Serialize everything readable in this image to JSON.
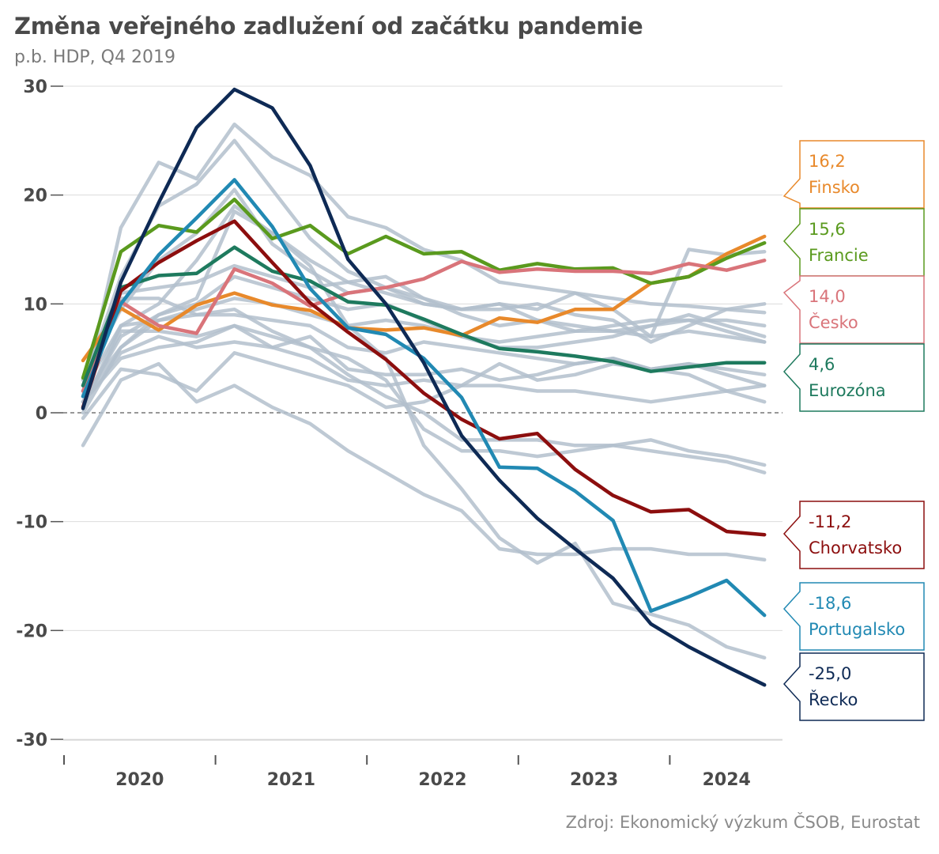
{
  "title": "Změna veřejného zadlužení od začátku pandemie",
  "subtitle": "p.b. HDP, Q4 2019",
  "source": "Zdroj: Ekonomický výzkum ČSOB, Eurostat",
  "chart_data": {
    "type": "line",
    "ylim": [
      -30,
      30
    ],
    "yticks": [
      30,
      20,
      10,
      0,
      -10,
      -20,
      -30
    ],
    "ytick_labels": [
      "30",
      "20",
      "10",
      "0",
      "-10",
      "-20",
      "-30"
    ],
    "xlim": [
      0,
      20
    ],
    "x": [
      0,
      1,
      2,
      3,
      4,
      5,
      6,
      7,
      8,
      9,
      10,
      11,
      12,
      13,
      14,
      15,
      16,
      17,
      18,
      19
    ],
    "x_periods": [
      "Q4 2019",
      "Q1 2020",
      "Q2 2020",
      "Q3 2020",
      "Q4 2020",
      "Q1 2021",
      "Q2 2021",
      "Q3 2021",
      "Q4 2021",
      "Q1 2022",
      "Q2 2022",
      "Q3 2022",
      "Q4 2022",
      "Q1 2023",
      "Q2 2023",
      "Q3 2023",
      "Q4 2023",
      "Q1 2024",
      "Q2 2024",
      "Q3 2024"
    ],
    "year_labels": [
      {
        "label": "2020",
        "center": 2
      },
      {
        "label": "2021",
        "center": 6
      },
      {
        "label": "2022",
        "center": 10
      },
      {
        "label": "2023",
        "center": 14
      },
      {
        "label": "2024",
        "center": 17.5
      }
    ],
    "year_boundaries": [
      0,
      4,
      8,
      12,
      16
    ],
    "zero_line": true,
    "grid": true,
    "highlighted": [
      {
        "name": "Finsko",
        "value_label": "16,2",
        "color": "#e8892b",
        "values": [
          4.8,
          9.6,
          7.6,
          9.9,
          11.0,
          9.9,
          9.4,
          7.8,
          7.6,
          7.8,
          7.1,
          8.7,
          8.3,
          9.5,
          9.5,
          11.9,
          12.5,
          14.6,
          16.2,
          null
        ]
      },
      {
        "name": "Francie",
        "value_label": "15,6",
        "color": "#5a9a1e",
        "values": [
          3.2,
          14.8,
          17.2,
          16.6,
          19.6,
          16.0,
          17.2,
          14.6,
          16.2,
          14.6,
          14.8,
          13.1,
          13.7,
          13.2,
          13.3,
          11.9,
          12.5,
          14.2,
          15.6,
          null
        ]
      },
      {
        "name": "Česko",
        "value_label": "14,0",
        "color": "#d9747a",
        "values": [
          2.0,
          10.2,
          8.0,
          7.3,
          13.2,
          11.9,
          9.8,
          11.0,
          11.5,
          12.3,
          13.9,
          12.9,
          13.2,
          13.0,
          13.0,
          12.8,
          13.7,
          13.1,
          14.0,
          null
        ]
      },
      {
        "name": "Eurozóna",
        "value_label": "4,6",
        "color": "#1e7a5e",
        "values": [
          2.5,
          11.5,
          12.6,
          12.8,
          15.2,
          13.0,
          12.1,
          10.2,
          9.9,
          8.6,
          7.2,
          5.9,
          5.6,
          5.2,
          4.7,
          3.8,
          4.2,
          4.6,
          4.6,
          null
        ]
      },
      {
        "name": "Chorvatsko",
        "value_label": "-11,2",
        "color": "#8c0e0e",
        "values": [
          0.5,
          11.2,
          13.8,
          15.8,
          17.6,
          13.8,
          10.1,
          7.4,
          4.9,
          1.8,
          -0.6,
          -2.4,
          -1.9,
          -5.2,
          -7.6,
          -9.1,
          -8.9,
          -10.9,
          -11.2,
          null
        ]
      },
      {
        "name": "Portugalsko",
        "value_label": "-18,6",
        "color": "#2189b3",
        "values": [
          1.5,
          10.0,
          14.5,
          17.9,
          21.4,
          17.1,
          11.4,
          7.8,
          7.2,
          5.0,
          1.4,
          -5.0,
          -5.1,
          -7.2,
          -9.9,
          -18.2,
          -16.9,
          -15.4,
          -18.6,
          null
        ]
      },
      {
        "name": "Řecko",
        "value_label": "-25,0",
        "color": "#0e2a55",
        "values": [
          0.4,
          12.0,
          19.3,
          26.2,
          29.7,
          28.0,
          22.7,
          14.1,
          10.0,
          4.6,
          -2.1,
          -6.2,
          -9.7,
          -12.5,
          -15.2,
          -19.4,
          -21.5,
          -23.3,
          -25.0,
          null
        ]
      }
    ],
    "background_series_color": "#b3bfcc",
    "background_series": [
      [
        1.5,
        17.0,
        23.0,
        21.5,
        26.5,
        23.5,
        21.8,
        18.0,
        17.0,
        15.0,
        14.0,
        12.0,
        11.5,
        11.0,
        10.5,
        10.0,
        9.8,
        9.5,
        9.2,
        null
      ],
      [
        2.5,
        12.5,
        19.0,
        21.0,
        25.0,
        20.5,
        16.0,
        13.0,
        11.5,
        10.5,
        9.0,
        8.0,
        8.5,
        8.0,
        7.5,
        7.0,
        7.5,
        7.0,
        6.5,
        null
      ],
      [
        2.0,
        8.0,
        10.0,
        14.0,
        19.0,
        16.5,
        14.0,
        12.0,
        11.0,
        10.0,
        9.5,
        10.0,
        9.5,
        11.0,
        9.5,
        7.0,
        15.0,
        14.5,
        14.8,
        null
      ],
      [
        3.0,
        9.5,
        14.0,
        16.5,
        20.5,
        15.5,
        13.0,
        11.0,
        11.5,
        10.0,
        9.5,
        9.5,
        10.0,
        9.0,
        8.5,
        6.5,
        8.0,
        9.5,
        10.0,
        null
      ],
      [
        1.0,
        7.0,
        9.0,
        10.0,
        12.5,
        11.5,
        10.5,
        9.5,
        10.0,
        8.5,
        7.0,
        6.5,
        7.0,
        7.5,
        7.5,
        8.0,
        8.5,
        8.5,
        8.0,
        null
      ],
      [
        0.0,
        6.0,
        8.5,
        9.5,
        10.5,
        10.0,
        9.0,
        8.0,
        8.5,
        8.0,
        7.0,
        6.0,
        6.0,
        6.5,
        7.0,
        8.0,
        9.0,
        8.0,
        7.0,
        null
      ],
      [
        1.0,
        5.0,
        6.0,
        6.5,
        8.0,
        6.0,
        7.0,
        4.0,
        3.5,
        3.5,
        4.0,
        3.0,
        3.5,
        4.5,
        5.0,
        4.0,
        4.5,
        4.0,
        3.5,
        null
      ],
      [
        -0.5,
        4.0,
        3.5,
        2.0,
        5.5,
        4.5,
        3.5,
        2.5,
        0.5,
        1.0,
        2.5,
        2.5,
        2.0,
        2.0,
        1.5,
        1.0,
        1.5,
        2.0,
        1.0,
        null
      ],
      [
        -3.0,
        3.0,
        4.5,
        1.0,
        2.5,
        0.5,
        -1.0,
        -3.5,
        -5.5,
        -7.5,
        -9.0,
        -12.5,
        -13.0,
        -13.0,
        -12.5,
        -12.5,
        -13.0,
        -13.0,
        -13.5,
        null
      ],
      [
        1.5,
        6.0,
        9.0,
        10.5,
        18.5,
        16.5,
        13.5,
        8.0,
        5.0,
        -3.0,
        -7.0,
        -11.5,
        -13.8,
        -12.0,
        -17.5,
        -18.5,
        -19.5,
        -21.5,
        -22.5,
        null
      ],
      [
        0.5,
        8.0,
        8.5,
        9.0,
        9.5,
        7.5,
        6.0,
        5.0,
        3.0,
        -1.5,
        -3.5,
        -3.5,
        -4.0,
        -3.5,
        -3.0,
        -3.5,
        -4.0,
        -4.5,
        -5.5,
        null
      ],
      [
        0.5,
        7.5,
        7.5,
        7.0,
        8.0,
        7.0,
        6.0,
        3.5,
        1.5,
        0.0,
        -2.5,
        -2.5,
        -2.5,
        -3.0,
        -3.0,
        -2.5,
        -3.5,
        -4.0,
        -4.8,
        null
      ],
      [
        2.0,
        10.5,
        10.5,
        9.0,
        9.0,
        8.5,
        8.0,
        6.0,
        5.5,
        6.5,
        6.0,
        5.5,
        5.0,
        4.5,
        5.0,
        4.0,
        4.5,
        3.5,
        2.5,
        null
      ],
      [
        2.5,
        11.0,
        11.5,
        12.0,
        13.5,
        12.5,
        11.5,
        12.0,
        12.5,
        10.5,
        9.5,
        10.0,
        8.5,
        7.5,
        8.0,
        8.5,
        8.5,
        7.5,
        6.5,
        null
      ],
      [
        1.0,
        5.5,
        7.0,
        6.0,
        6.5,
        6.0,
        5.0,
        3.0,
        2.5,
        3.0,
        2.5,
        4.5,
        3.0,
        3.5,
        4.5,
        4.0,
        3.5,
        2.0,
        2.5,
        null
      ]
    ]
  }
}
